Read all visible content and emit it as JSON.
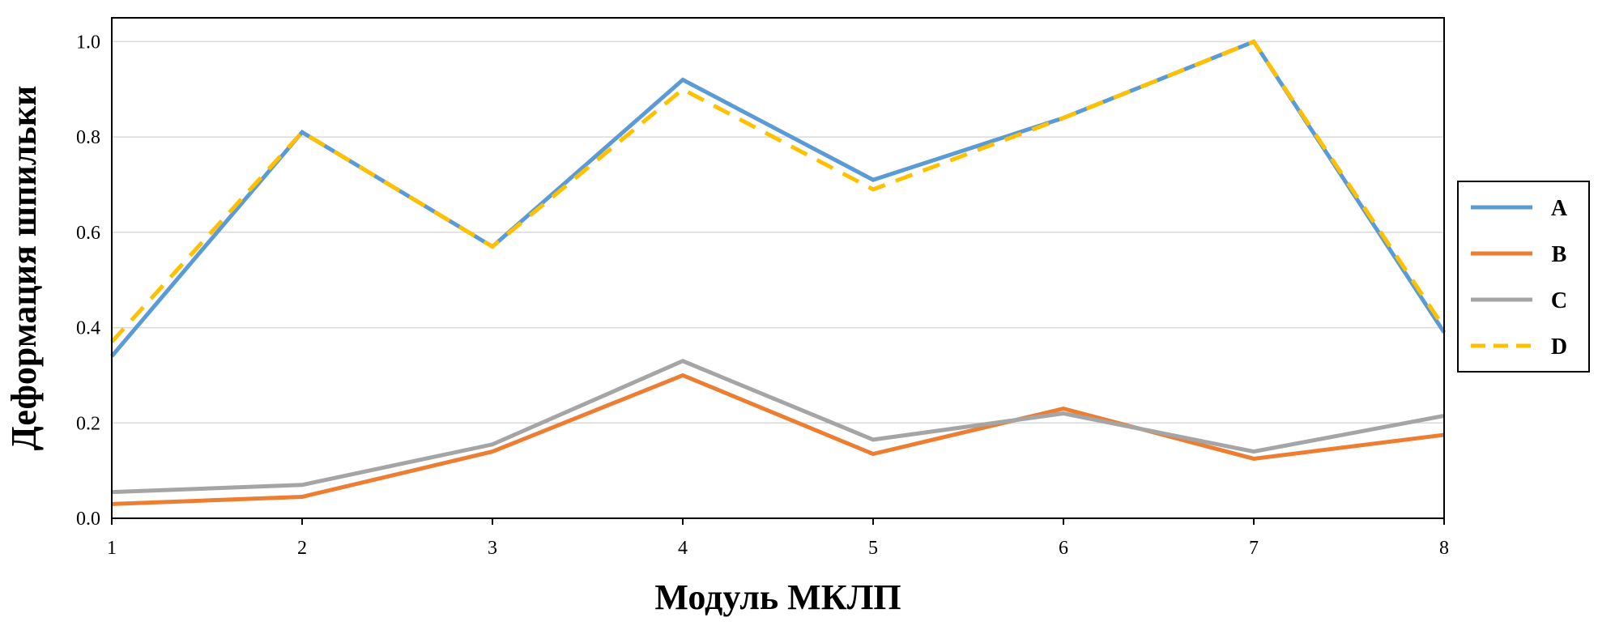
{
  "chart_data": {
    "type": "line",
    "xlabel": "Модуль МКЛП",
    "ylabel": "Деформация шпильки",
    "x": [
      1,
      2,
      3,
      4,
      5,
      6,
      7,
      8
    ],
    "xlim": [
      1,
      8
    ],
    "ylim": [
      0,
      1.05
    ],
    "y_ticks": [
      0.0,
      0.2,
      0.4,
      0.6,
      0.8,
      1.0
    ],
    "y_tick_labels": [
      "0.0",
      "0.2",
      "0.4",
      "0.6",
      "0.8",
      "1.0"
    ],
    "x_tick_labels": [
      "1",
      "2",
      "3",
      "4",
      "5",
      "6",
      "7",
      "8"
    ],
    "grid": "horizontal",
    "legend_position": "right",
    "series": [
      {
        "name": "A",
        "color": "#5B9BD5",
        "style": "solid",
        "values": [
          0.34,
          0.81,
          0.57,
          0.92,
          0.71,
          0.84,
          1.0,
          0.39
        ]
      },
      {
        "name": "B",
        "color": "#ED7D31",
        "style": "solid",
        "values": [
          0.03,
          0.045,
          0.14,
          0.3,
          0.135,
          0.23,
          0.125,
          0.175
        ]
      },
      {
        "name": "C",
        "color": "#A5A5A5",
        "style": "solid",
        "values": [
          0.055,
          0.07,
          0.155,
          0.33,
          0.165,
          0.22,
          0.14,
          0.215
        ]
      },
      {
        "name": "D",
        "color": "#FFC000",
        "style": "dashed",
        "values": [
          0.37,
          0.81,
          0.57,
          0.9,
          0.69,
          0.84,
          1.0,
          0.4
        ]
      }
    ]
  }
}
